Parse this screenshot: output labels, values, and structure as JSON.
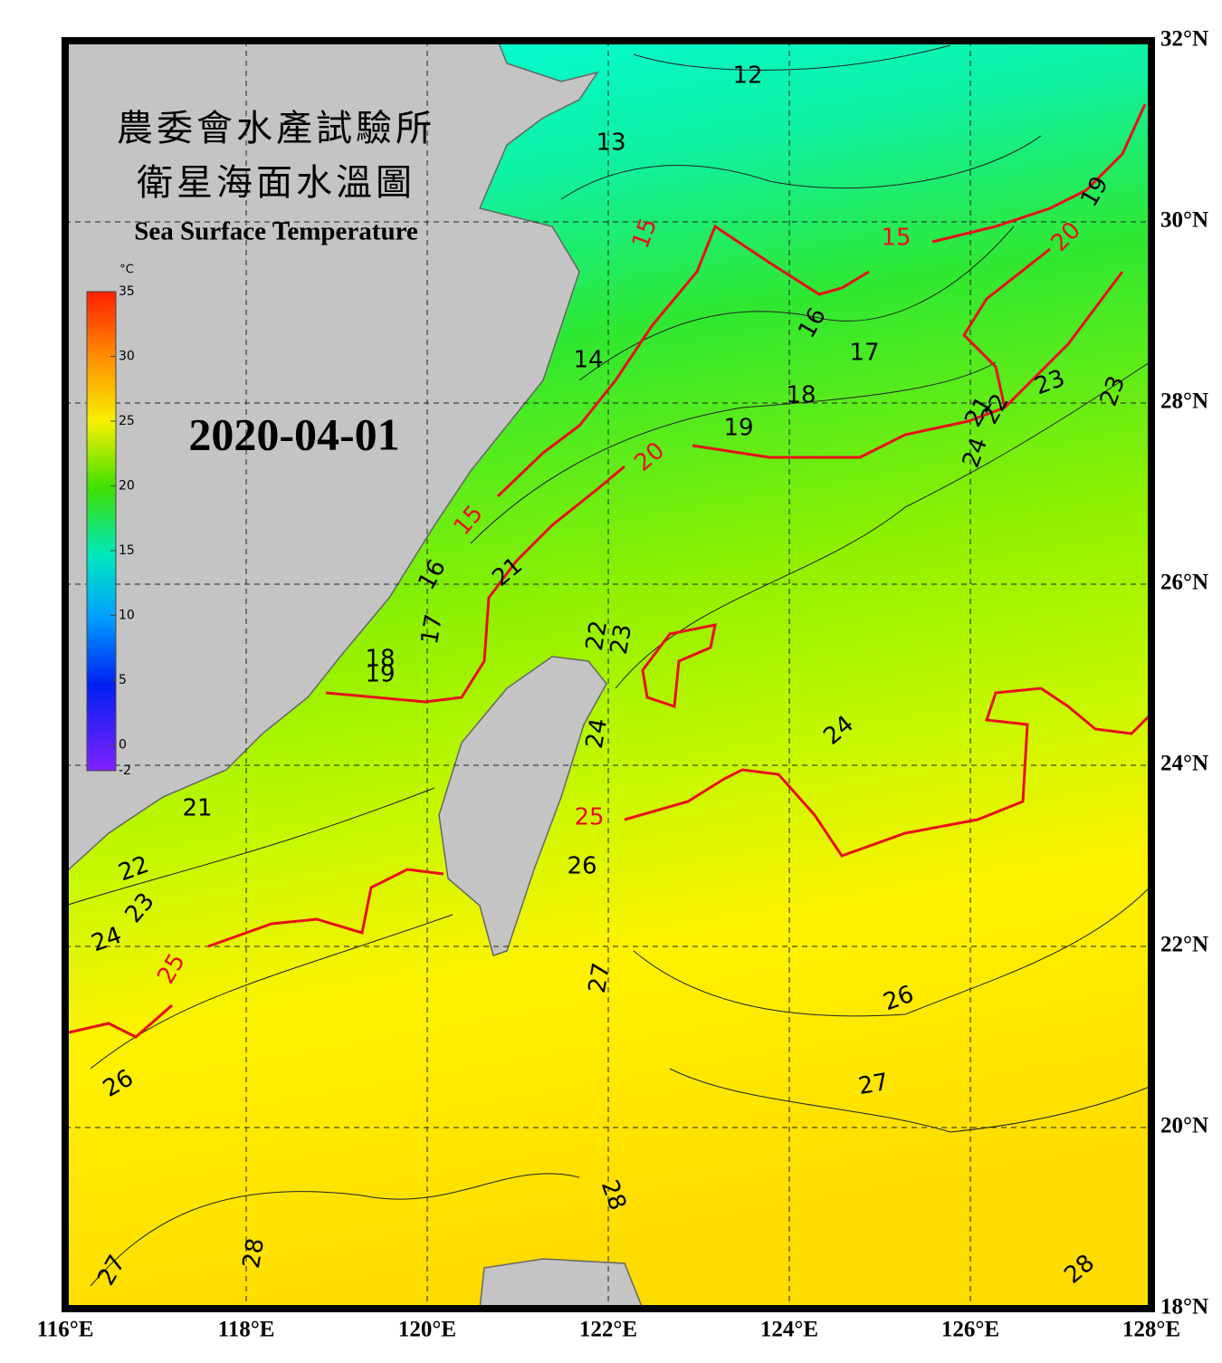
{
  "title_lines": [
    "農委會水產試驗所",
    "衛星海面水溫圖"
  ],
  "subtitle": "Sea Surface Temperature",
  "date": "2020-04-01",
  "colorbar": {
    "unit": "°C",
    "range": [
      -2,
      35
    ],
    "ticks": [
      35,
      30,
      25,
      20,
      15,
      10,
      5,
      0,
      -2
    ]
  },
  "lon_range": [
    116,
    128
  ],
  "lat_range": [
    18,
    32
  ],
  "lon_ticks": [
    {
      "value": 116,
      "label": "116°E"
    },
    {
      "value": 118,
      "label": "118°E"
    },
    {
      "value": 120,
      "label": "120°E"
    },
    {
      "value": 122,
      "label": "122°E"
    },
    {
      "value": 124,
      "label": "124°E"
    },
    {
      "value": 126,
      "label": "126°E"
    },
    {
      "value": 128,
      "label": "128°E"
    }
  ],
  "lat_ticks": [
    {
      "value": 18,
      "label": "18°N"
    },
    {
      "value": 20,
      "label": "20°N"
    },
    {
      "value": 22,
      "label": "22°N"
    },
    {
      "value": 24,
      "label": "24°N"
    },
    {
      "value": 26,
      "label": "26°N"
    },
    {
      "value": 28,
      "label": "28°N"
    },
    {
      "value": 30,
      "label": "30°N"
    },
    {
      "value": 32,
      "label": "32°N"
    }
  ],
  "red_contours": [
    15,
    20,
    25
  ],
  "contour_labels": [
    12,
    13,
    15,
    14,
    16,
    17,
    18,
    19,
    15,
    20,
    19,
    23,
    23,
    21,
    22,
    24,
    20,
    15,
    21,
    16,
    17,
    18,
    19,
    22,
    23,
    24,
    24,
    25,
    26,
    21,
    22,
    23,
    24,
    25,
    27,
    26,
    27,
    26,
    28,
    28,
    27,
    28
  ]
}
